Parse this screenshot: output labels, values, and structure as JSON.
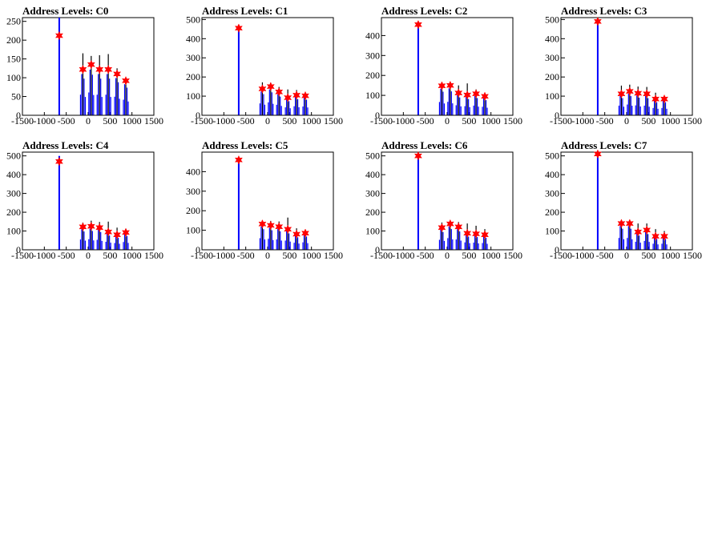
{
  "chart_data": [
    {
      "type": "bar",
      "title": "Address Levels: C0",
      "xlim": [
        -1500,
        1500
      ],
      "ylim": [
        0,
        260
      ],
      "x_ticks": [
        -1500,
        -1000,
        -500,
        0,
        500,
        1000,
        1500
      ],
      "x_tick_labels": [
        "-1500",
        "-1000",
        "-500",
        "0",
        "500",
        "1000",
        "1500"
      ],
      "y_ticks": [
        0,
        50,
        100,
        150,
        200,
        250
      ],
      "y_tick_labels": [
        "0",
        "50",
        "100",
        "150",
        "200",
        "250"
      ],
      "peaks": [
        {
          "x": -660,
          "y": 212,
          "spike": 260
        },
        {
          "x": -120,
          "y": 122,
          "spike": 165
        },
        {
          "x": 70,
          "y": 135,
          "spike": 158
        },
        {
          "x": 260,
          "y": 122,
          "spike": 160
        },
        {
          "x": 460,
          "y": 122,
          "spike": 163
        },
        {
          "x": 660,
          "y": 110,
          "spike": 125
        },
        {
          "x": 860,
          "y": 92,
          "spike": 100
        }
      ]
    },
    {
      "type": "bar",
      "title": "Address Levels: C1",
      "xlim": [
        -1500,
        1500
      ],
      "ylim": [
        0,
        510
      ],
      "x_ticks": [
        -1500,
        -1000,
        -500,
        0,
        500,
        1000,
        1500
      ],
      "x_tick_labels": [
        "-1500",
        "-1000",
        "-500",
        "0",
        "500",
        "1000",
        "1500"
      ],
      "y_ticks": [
        0,
        100,
        200,
        300,
        400,
        500
      ],
      "y_tick_labels": [
        "0",
        "100",
        "200",
        "300",
        "400",
        "500"
      ],
      "peaks": [
        {
          "x": -660,
          "y": 455,
          "spike": 470
        },
        {
          "x": -120,
          "y": 138,
          "spike": 172
        },
        {
          "x": 70,
          "y": 150,
          "spike": 170
        },
        {
          "x": 260,
          "y": 122,
          "spike": 148
        },
        {
          "x": 460,
          "y": 92,
          "spike": 135
        },
        {
          "x": 660,
          "y": 105,
          "spike": 132
        },
        {
          "x": 860,
          "y": 102,
          "spike": 112
        }
      ]
    },
    {
      "type": "bar",
      "title": "Address Levels: C2",
      "xlim": [
        -1500,
        1500
      ],
      "ylim": [
        0,
        490
      ],
      "x_ticks": [
        -1500,
        -1000,
        -500,
        0,
        500,
        1000,
        1500
      ],
      "x_tick_labels": [
        "-1500",
        "-1000",
        "-500",
        "0",
        "500",
        "1000",
        "1500"
      ],
      "y_ticks": [
        0,
        100,
        200,
        300,
        400
      ],
      "y_tick_labels": [
        "0",
        "100",
        "200",
        "300",
        "400"
      ],
      "peaks": [
        {
          "x": -660,
          "y": 455,
          "spike": 470
        },
        {
          "x": -120,
          "y": 148,
          "spike": 165
        },
        {
          "x": 70,
          "y": 150,
          "spike": 168
        },
        {
          "x": 260,
          "y": 112,
          "spike": 150
        },
        {
          "x": 460,
          "y": 102,
          "spike": 160
        },
        {
          "x": 660,
          "y": 108,
          "spike": 130
        },
        {
          "x": 860,
          "y": 95,
          "spike": 108
        }
      ]
    },
    {
      "type": "bar",
      "title": "Address Levels: C3",
      "xlim": [
        -1500,
        1500
      ],
      "ylim": [
        0,
        510
      ],
      "x_ticks": [
        -1500,
        -1000,
        -500,
        0,
        500,
        1000,
        1500
      ],
      "x_tick_labels": [
        "-1500",
        "-1000",
        "-500",
        "0",
        "500",
        "1000",
        "1500"
      ],
      "y_ticks": [
        0,
        100,
        200,
        300,
        400,
        500
      ],
      "y_tick_labels": [
        "0",
        "100",
        "200",
        "300",
        "400",
        "500"
      ],
      "peaks": [
        {
          "x": -660,
          "y": 490,
          "spike": 500
        },
        {
          "x": -120,
          "y": 112,
          "spike": 155
        },
        {
          "x": 70,
          "y": 125,
          "spike": 160
        },
        {
          "x": 260,
          "y": 115,
          "spike": 150
        },
        {
          "x": 460,
          "y": 112,
          "spike": 148
        },
        {
          "x": 660,
          "y": 85,
          "spike": 118
        },
        {
          "x": 860,
          "y": 85,
          "spike": 100
        }
      ]
    },
    {
      "type": "bar",
      "title": "Address Levels: C4",
      "xlim": [
        -1500,
        1500
      ],
      "ylim": [
        0,
        520
      ],
      "x_ticks": [
        -1500,
        -1000,
        -500,
        0,
        500,
        1000,
        1500
      ],
      "x_tick_labels": [
        "-1500",
        "-1000",
        "-500",
        "0",
        "500",
        "1000",
        "1500"
      ],
      "y_ticks": [
        0,
        100,
        200,
        300,
        400,
        500
      ],
      "y_tick_labels": [
        "0",
        "100",
        "200",
        "300",
        "400",
        "500"
      ],
      "peaks": [
        {
          "x": -660,
          "y": 470,
          "spike": 500
        },
        {
          "x": -120,
          "y": 122,
          "spike": 145
        },
        {
          "x": 70,
          "y": 125,
          "spike": 155
        },
        {
          "x": 260,
          "y": 118,
          "spike": 148
        },
        {
          "x": 460,
          "y": 95,
          "spike": 150
        },
        {
          "x": 660,
          "y": 80,
          "spike": 118
        },
        {
          "x": 860,
          "y": 92,
          "spike": 112
        }
      ]
    },
    {
      "type": "bar",
      "title": "Address Levels: C5",
      "xlim": [
        -1500,
        1500
      ],
      "ylim": [
        0,
        500
      ],
      "x_ticks": [
        -1500,
        -1000,
        -500,
        0,
        500,
        1000,
        1500
      ],
      "x_tick_labels": [
        "-1500",
        "-1000",
        "-500",
        "0",
        "500",
        "1000",
        "1500"
      ],
      "y_ticks": [
        0,
        100,
        200,
        300,
        400
      ],
      "y_tick_labels": [
        "0",
        "100",
        "200",
        "300",
        "400"
      ],
      "peaks": [
        {
          "x": -660,
          "y": 460,
          "spike": 470
        },
        {
          "x": -120,
          "y": 132,
          "spike": 150
        },
        {
          "x": 70,
          "y": 125,
          "spike": 148
        },
        {
          "x": 260,
          "y": 118,
          "spike": 145
        },
        {
          "x": 460,
          "y": 105,
          "spike": 165
        },
        {
          "x": 660,
          "y": 80,
          "spike": 110
        },
        {
          "x": 860,
          "y": 85,
          "spike": 95
        }
      ]
    },
    {
      "type": "bar",
      "title": "Address Levels: C6",
      "xlim": [
        -1500,
        1500
      ],
      "ylim": [
        0,
        520
      ],
      "x_ticks": [
        -1500,
        -1000,
        -500,
        0,
        500,
        1000,
        1500
      ],
      "x_tick_labels": [
        "-1500",
        "-1000",
        "-500",
        "0",
        "500",
        "1000",
        "1500"
      ],
      "y_ticks": [
        0,
        100,
        200,
        300,
        400,
        500
      ],
      "y_tick_labels": [
        "0",
        "100",
        "200",
        "300",
        "400",
        "500"
      ],
      "peaks": [
        {
          "x": -660,
          "y": 500,
          "spike": 515
        },
        {
          "x": -120,
          "y": 118,
          "spike": 145
        },
        {
          "x": 70,
          "y": 138,
          "spike": 150
        },
        {
          "x": 260,
          "y": 122,
          "spike": 148
        },
        {
          "x": 460,
          "y": 88,
          "spike": 140
        },
        {
          "x": 660,
          "y": 85,
          "spike": 128
        },
        {
          "x": 860,
          "y": 80,
          "spike": 110
        }
      ]
    },
    {
      "type": "bar",
      "title": "Address Levels: C7",
      "xlim": [
        -1500,
        1500
      ],
      "ylim": [
        0,
        520
      ],
      "x_ticks": [
        -1500,
        -1000,
        -500,
        0,
        500,
        1000,
        1500
      ],
      "x_tick_labels": [
        "-1500",
        "-1000",
        "-500",
        "0",
        "500",
        "1000",
        "1500"
      ],
      "y_ticks": [
        0,
        100,
        200,
        300,
        400,
        500
      ],
      "y_tick_labels": [
        "0",
        "100",
        "200",
        "300",
        "400",
        "500"
      ],
      "peaks": [
        {
          "x": -660,
          "y": 510,
          "spike": 520
        },
        {
          "x": -120,
          "y": 140,
          "spike": 150
        },
        {
          "x": 70,
          "y": 140,
          "spike": 150
        },
        {
          "x": 260,
          "y": 95,
          "spike": 140
        },
        {
          "x": 460,
          "y": 105,
          "spike": 140
        },
        {
          "x": 660,
          "y": 72,
          "spike": 110
        },
        {
          "x": 860,
          "y": 72,
          "spike": 100
        }
      ]
    }
  ],
  "colors": {
    "histogram_fill": "#0000ff",
    "histogram_outline": "#000000",
    "peak_marker": "#ff0000",
    "axis": "#000000",
    "background": "#ffffff"
  }
}
